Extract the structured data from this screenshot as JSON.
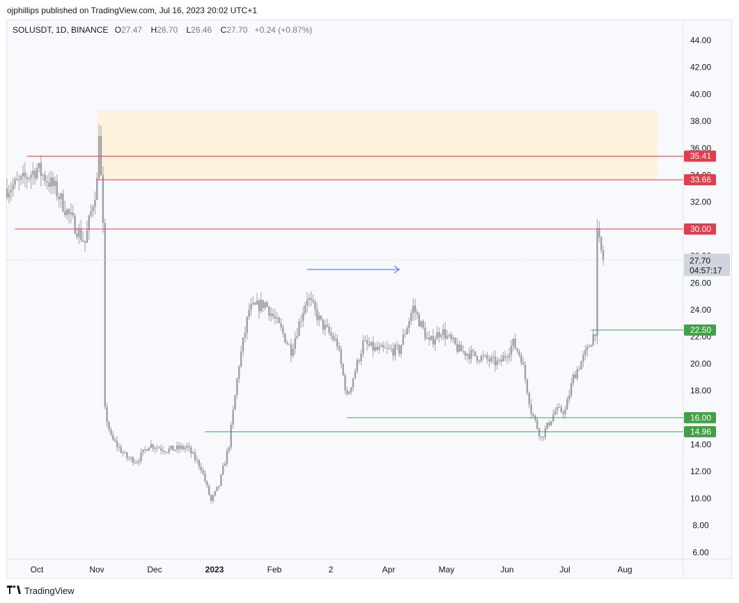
{
  "header": {
    "published": "ojphillips published on TradingView.com, Jul 16, 2023 20:02 UTC+1"
  },
  "symbol_bar": {
    "symbol": "SOLUSDT, 1D, BINANCE",
    "o_label": "O",
    "o_value": "27.47",
    "h_label": "H",
    "h_value": "28.70",
    "l_label": "L",
    "l_value": "26.46",
    "c_label": "C",
    "c_value": "27.70",
    "change": "+0.24 (+0.87%)"
  },
  "footer": {
    "brand": "TradingView"
  },
  "colors": {
    "candle": "#9e9ea6",
    "resistance": "#e03e4c",
    "support": "#43a047",
    "zone": "#fdf2dc",
    "arrow": "#2962ff",
    "price_tag": "#d1d4dc"
  },
  "chart_data": {
    "type": "candlestick",
    "title": "",
    "y_axis": {
      "ticks": [
        6,
        8,
        10,
        12,
        14,
        16,
        18,
        20,
        22,
        24,
        26,
        28,
        30,
        32,
        34,
        36,
        38,
        40,
        42,
        44
      ],
      "range": [
        5.5,
        45.5
      ],
      "side": "right"
    },
    "x_axis": {
      "labels": [
        "Oct",
        "Nov",
        "Dec",
        "2023",
        "Feb",
        "2",
        "Apr",
        "May",
        "Jun",
        "Jul",
        "Aug"
      ],
      "range": [
        "2022-09-21",
        "2023-08-25"
      ]
    },
    "last_price": {
      "value": 27.7,
      "label": "27.70",
      "countdown": "04:57:17"
    },
    "horizontal_lines": [
      {
        "value": 35.41,
        "label": "35.41",
        "kind": "resistance",
        "start": "2022-10-01"
      },
      {
        "value": 33.66,
        "label": "33.66",
        "kind": "resistance",
        "start": "2022-11-05"
      },
      {
        "value": 30.0,
        "label": "30.00",
        "kind": "resistance",
        "start": "2022-09-25"
      },
      {
        "value": 22.5,
        "label": "22.50",
        "kind": "support",
        "start": "2023-07-10"
      },
      {
        "value": 16.0,
        "label": "16.00",
        "kind": "support",
        "start": "2023-03-10"
      },
      {
        "value": 14.96,
        "label": "14.96",
        "kind": "support",
        "start": "2022-12-29"
      }
    ],
    "zone": {
      "from": "2022-11-05",
      "to": "2023-08-12",
      "low": 33.66,
      "high": 38.8
    },
    "arrow": {
      "from": "2023-02-18",
      "to": "2023-04-05",
      "value": 27.0
    },
    "key_points": [
      [
        "2022-09-21",
        33.0
      ],
      [
        "2022-09-28",
        33.5
      ],
      [
        "2022-10-06",
        34.5
      ],
      [
        "2022-10-15",
        33.0
      ],
      [
        "2022-10-22",
        31.0
      ],
      [
        "2022-10-30",
        29.0
      ],
      [
        "2022-11-05",
        33.5
      ],
      [
        "2022-11-06",
        37.5
      ],
      [
        "2022-11-08",
        30.0
      ],
      [
        "2022-11-09",
        16.5
      ],
      [
        "2022-11-12",
        14.5
      ],
      [
        "2022-11-20",
        13.0
      ],
      [
        "2022-11-25",
        12.8
      ],
      [
        "2022-12-01",
        14.0
      ],
      [
        "2022-12-10",
        13.6
      ],
      [
        "2022-12-20",
        13.8
      ],
      [
        "2022-12-27",
        12.3
      ],
      [
        "2023-01-01",
        9.8
      ],
      [
        "2023-01-05",
        11.0
      ],
      [
        "2023-01-10",
        14.0
      ],
      [
        "2023-01-15",
        20.0
      ],
      [
        "2023-01-20",
        24.0
      ],
      [
        "2023-01-28",
        24.5
      ],
      [
        "2023-02-05",
        22.5
      ],
      [
        "2023-02-10",
        21.0
      ],
      [
        "2023-02-18",
        25.0
      ],
      [
        "2023-02-25",
        23.0
      ],
      [
        "2023-03-05",
        21.5
      ],
      [
        "2023-03-10",
        17.5
      ],
      [
        "2023-03-18",
        21.5
      ],
      [
        "2023-03-25",
        21.0
      ],
      [
        "2023-04-05",
        21.0
      ],
      [
        "2023-04-12",
        24.2
      ],
      [
        "2023-04-20",
        21.5
      ],
      [
        "2023-04-26",
        22.5
      ],
      [
        "2023-05-05",
        21.0
      ],
      [
        "2023-05-15",
        20.5
      ],
      [
        "2023-05-25",
        20.0
      ],
      [
        "2023-06-01",
        21.5
      ],
      [
        "2023-06-05",
        20.5
      ],
      [
        "2023-06-10",
        16.5
      ],
      [
        "2023-06-15",
        14.5
      ],
      [
        "2023-06-22",
        16.5
      ],
      [
        "2023-06-27",
        16.5
      ],
      [
        "2023-07-01",
        19.0
      ],
      [
        "2023-07-08",
        21.0
      ],
      [
        "2023-07-12",
        22.5
      ],
      [
        "2023-07-13",
        29.5
      ],
      [
        "2023-07-16",
        27.7
      ]
    ]
  }
}
